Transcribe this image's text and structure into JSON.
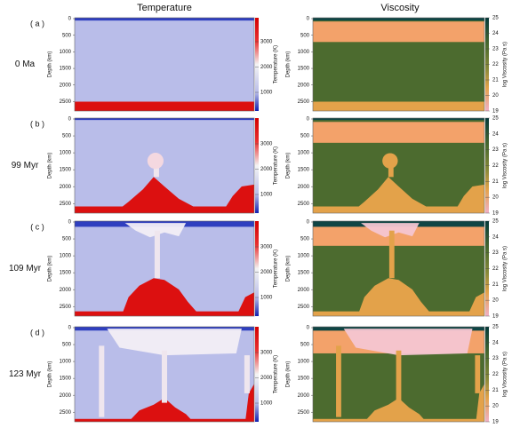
{
  "columns": [
    "Temperature",
    "Viscosity"
  ],
  "panels": [
    {
      "letter": "( a )",
      "time": "0 Ma"
    },
    {
      "letter": "( b )",
      "time": "99 Myr"
    },
    {
      "letter": "( c )",
      "time": "109 Myr"
    },
    {
      "letter": "( d )",
      "time": "123 Myr"
    }
  ],
  "depth_axis": {
    "label": "Depth (km)",
    "ticks": [
      0,
      500,
      1000,
      1500,
      2000,
      2500
    ]
  },
  "temperature_bar": {
    "label": "Temperature (K)",
    "ticks": [
      1000,
      2000,
      3000
    ]
  },
  "viscosity_bar": {
    "label": "log Viscosity (Pa s)",
    "ticks": [
      19,
      20,
      21,
      22,
      23,
      24,
      25
    ]
  }
}
